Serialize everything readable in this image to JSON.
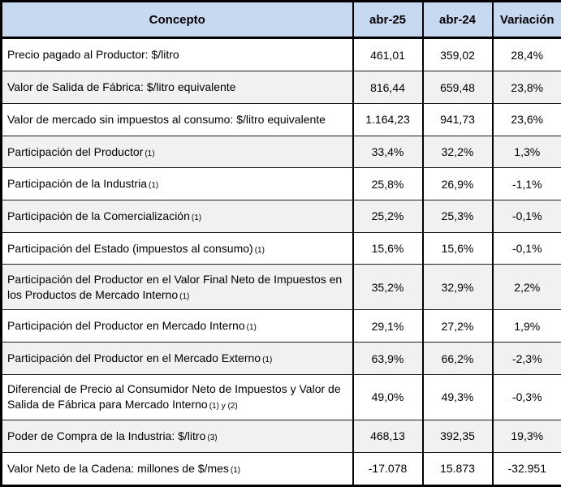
{
  "table": {
    "headers": [
      "Concepto",
      "abr-25",
      "abr-24",
      "Variación"
    ],
    "colors": {
      "header_bg": "#c6d9f1",
      "alt_row_bg": "#f1f1f1",
      "border": "#000000"
    },
    "rows": [
      {
        "concepto": "Precio pagado al Productor: $/litro",
        "note": "",
        "abr25": "461,01",
        "abr24": "359,02",
        "variacion": "28,4%"
      },
      {
        "concepto": "Valor de Salida de Fábrica: $/litro equivalente",
        "note": "",
        "abr25": "816,44",
        "abr24": "659,48",
        "variacion": "23,8%"
      },
      {
        "concepto": "Valor de mercado sin impuestos al consumo: $/litro equivalente",
        "note": "",
        "abr25": "1.164,23",
        "abr24": "941,73",
        "variacion": "23,6%"
      },
      {
        "concepto": "Participación del Productor",
        "note": "(1)",
        "abr25": "33,4%",
        "abr24": "32,2%",
        "variacion": "1,3%"
      },
      {
        "concepto": "Participación de la Industria",
        "note": "(1)",
        "abr25": "25,8%",
        "abr24": "26,9%",
        "variacion": "-1,1%"
      },
      {
        "concepto": "Participación de la Comercialización",
        "note": "(1)",
        "abr25": "25,2%",
        "abr24": "25,3%",
        "variacion": "-0,1%"
      },
      {
        "concepto": "Participación del Estado (impuestos al consumo)",
        "note": "(1)",
        "abr25": "15,6%",
        "abr24": "15,6%",
        "variacion": "-0,1%"
      },
      {
        "concepto": "Participación del Productor en el Valor Final Neto de Impuestos en los Productos de Mercado Interno",
        "note": "(1)",
        "abr25": "35,2%",
        "abr24": "32,9%",
        "variacion": "2,2%"
      },
      {
        "concepto": "Participación del Productor en Mercado Interno",
        "note": "(1)",
        "abr25": "29,1%",
        "abr24": "27,2%",
        "variacion": "1,9%"
      },
      {
        "concepto": "Participación del Productor en el Mercado Externo",
        "note": "(1)",
        "abr25": "63,9%",
        "abr24": "66,2%",
        "variacion": "-2,3%"
      },
      {
        "concepto": "Diferencial de Precio al Consumidor Neto de Impuestos y Valor de Salida de Fábrica para Mercado Interno",
        "note": "(1) y (2)",
        "abr25": "49,0%",
        "abr24": "49,3%",
        "variacion": "-0,3%"
      },
      {
        "concepto": "Poder de Compra de la Industria: $/litro",
        "note": "(3)",
        "abr25": "468,13",
        "abr24": "392,35",
        "variacion": "19,3%"
      },
      {
        "concepto": "Valor Neto de la Cadena: millones de $/mes",
        "note": "(1)",
        "abr25": "-17.078",
        "abr24": "15.873",
        "variacion": "-32.951"
      }
    ]
  }
}
